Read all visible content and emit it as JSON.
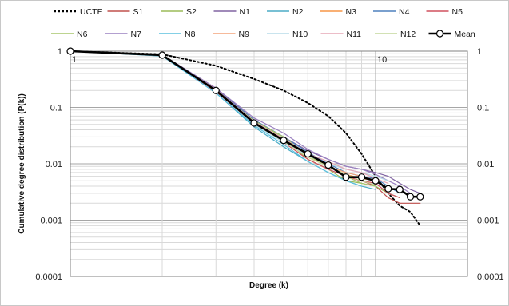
{
  "chart_data": {
    "type": "line",
    "xlabel": "Degree (k)",
    "ylabel": "Cumulative degree distribution (P(k))",
    "x_scale": "log",
    "y_scale": "log",
    "xlim": [
      1,
      20
    ],
    "ylim": [
      0.0001,
      1
    ],
    "x_tick_labels": [
      {
        "value": 1,
        "label": "1"
      },
      {
        "value": 10,
        "label": "10"
      }
    ],
    "y_tick_labels": [
      {
        "value": 1,
        "label": "1"
      },
      {
        "value": 0.1,
        "label": "0.1"
      },
      {
        "value": 0.01,
        "label": "0.01"
      },
      {
        "value": 0.001,
        "label": "0.001"
      },
      {
        "value": 0.0001,
        "label": "0.0001"
      }
    ],
    "grid": true,
    "legend_position": "top",
    "series": [
      {
        "name": "UCTE",
        "color": "#000000",
        "style": "dotted",
        "points": [
          [
            1,
            1
          ],
          [
            2,
            0.88
          ],
          [
            3,
            0.55
          ],
          [
            4,
            0.32
          ],
          [
            5,
            0.2
          ],
          [
            6,
            0.12
          ],
          [
            7,
            0.07
          ],
          [
            8,
            0.035
          ],
          [
            9,
            0.015
          ],
          [
            10,
            0.006
          ],
          [
            11,
            0.003
          ],
          [
            12,
            0.0018
          ],
          [
            13,
            0.0014
          ],
          [
            14,
            0.0008
          ]
        ]
      },
      {
        "name": "S1",
        "color": "#c0504d",
        "style": "solid",
        "points": [
          [
            1,
            1
          ],
          [
            2,
            0.83
          ],
          [
            3,
            0.2
          ],
          [
            4,
            0.05
          ],
          [
            5,
            0.025
          ],
          [
            6,
            0.015
          ],
          [
            7,
            0.009
          ],
          [
            8,
            0.006
          ],
          [
            9,
            0.005
          ],
          [
            10,
            0.004
          ],
          [
            11,
            0.0025
          ],
          [
            12,
            0.002
          ],
          [
            13,
            0.002
          ],
          [
            14,
            0.002
          ]
        ]
      },
      {
        "name": "S2",
        "color": "#9bbb59",
        "style": "solid",
        "points": [
          [
            1,
            1
          ],
          [
            2,
            0.85
          ],
          [
            3,
            0.2
          ],
          [
            4,
            0.06
          ],
          [
            5,
            0.028
          ],
          [
            6,
            0.012
          ],
          [
            7,
            0.008
          ],
          [
            8,
            0.005
          ],
          [
            9,
            0.0045
          ],
          [
            10,
            0.004
          ],
          [
            11,
            0.003
          ],
          [
            12,
            0.0025
          ]
        ]
      },
      {
        "name": "N1",
        "color": "#8064a2",
        "style": "solid",
        "points": [
          [
            1,
            1
          ],
          [
            2,
            0.86
          ],
          [
            3,
            0.22
          ],
          [
            4,
            0.06
          ],
          [
            5,
            0.03
          ],
          [
            6,
            0.017
          ],
          [
            7,
            0.012
          ],
          [
            8,
            0.009
          ],
          [
            9,
            0.008
          ],
          [
            10,
            0.007
          ],
          [
            11,
            0.006
          ],
          [
            12,
            0.0045
          ],
          [
            13,
            0.0035
          ],
          [
            14,
            0.003
          ]
        ]
      },
      {
        "name": "N2",
        "color": "#4bacc6",
        "style": "solid",
        "points": [
          [
            1,
            1
          ],
          [
            2,
            0.82
          ],
          [
            3,
            0.18
          ],
          [
            4,
            0.045
          ],
          [
            5,
            0.02
          ],
          [
            6,
            0.011
          ],
          [
            7,
            0.007
          ],
          [
            8,
            0.005
          ],
          [
            9,
            0.004
          ],
          [
            10,
            0.0035
          ]
        ]
      },
      {
        "name": "N3",
        "color": "#f79646",
        "style": "solid",
        "points": [
          [
            1,
            1
          ],
          [
            2,
            0.84
          ],
          [
            3,
            0.2
          ],
          [
            4,
            0.055
          ],
          [
            5,
            0.027
          ],
          [
            6,
            0.013
          ],
          [
            7,
            0.009
          ],
          [
            8,
            0.0065
          ],
          [
            9,
            0.0055
          ],
          [
            10,
            0.005
          ],
          [
            11,
            0.0035
          ]
        ]
      },
      {
        "name": "N4",
        "color": "#4f81bd",
        "style": "solid",
        "points": [
          [
            1,
            1
          ],
          [
            2,
            0.85
          ],
          [
            3,
            0.21
          ],
          [
            4,
            0.06
          ],
          [
            5,
            0.03
          ],
          [
            6,
            0.016
          ],
          [
            7,
            0.01
          ],
          [
            8,
            0.007
          ],
          [
            9,
            0.006
          ],
          [
            10,
            0.0055
          ],
          [
            11,
            0.004
          ],
          [
            12,
            0.003
          ]
        ]
      },
      {
        "name": "N5",
        "color": "#d0505f",
        "style": "solid",
        "points": [
          [
            1,
            1
          ],
          [
            2,
            0.83
          ],
          [
            3,
            0.19
          ],
          [
            4,
            0.052
          ],
          [
            5,
            0.024
          ],
          [
            6,
            0.012
          ],
          [
            7,
            0.008
          ],
          [
            8,
            0.006
          ],
          [
            9,
            0.005
          ],
          [
            10,
            0.0045
          ],
          [
            11,
            0.003
          ],
          [
            12,
            0.0025
          ]
        ]
      },
      {
        "name": "N6",
        "color": "#a7c66c",
        "style": "solid",
        "points": [
          [
            1,
            1
          ],
          [
            2,
            0.84
          ],
          [
            3,
            0.2
          ],
          [
            4,
            0.058
          ],
          [
            5,
            0.03
          ],
          [
            6,
            0.014
          ],
          [
            7,
            0.009
          ],
          [
            8,
            0.006
          ],
          [
            9,
            0.0045
          ],
          [
            10,
            0.004
          ]
        ]
      },
      {
        "name": "N7",
        "color": "#9a80c0",
        "style": "solid",
        "points": [
          [
            1,
            1
          ],
          [
            2,
            0.86
          ],
          [
            3,
            0.22
          ],
          [
            4,
            0.065
          ],
          [
            5,
            0.035
          ],
          [
            6,
            0.018
          ],
          [
            7,
            0.012
          ],
          [
            8,
            0.009
          ],
          [
            9,
            0.008
          ],
          [
            10,
            0.0065
          ],
          [
            11,
            0.005
          ],
          [
            12,
            0.004
          ],
          [
            13,
            0.003
          ]
        ]
      },
      {
        "name": "N8",
        "color": "#5bc0de",
        "style": "solid",
        "points": [
          [
            1,
            1
          ],
          [
            2,
            0.82
          ],
          [
            3,
            0.18
          ],
          [
            4,
            0.048
          ],
          [
            5,
            0.022
          ],
          [
            6,
            0.011
          ],
          [
            7,
            0.007
          ],
          [
            8,
            0.005
          ],
          [
            9,
            0.004
          ]
        ]
      },
      {
        "name": "N9",
        "color": "#f4a37a",
        "style": "solid",
        "points": [
          [
            1,
            1
          ],
          [
            2,
            0.84
          ],
          [
            3,
            0.2
          ],
          [
            4,
            0.055
          ],
          [
            5,
            0.026
          ],
          [
            6,
            0.013
          ],
          [
            7,
            0.009
          ],
          [
            8,
            0.007
          ],
          [
            9,
            0.006
          ],
          [
            10,
            0.005
          ]
        ]
      },
      {
        "name": "N10",
        "color": "#b7dbe8",
        "style": "solid",
        "points": [
          [
            1,
            1
          ],
          [
            2,
            0.85
          ],
          [
            3,
            0.2
          ],
          [
            4,
            0.05
          ],
          [
            5,
            0.024
          ],
          [
            6,
            0.014
          ],
          [
            7,
            0.01
          ],
          [
            8,
            0.008
          ],
          [
            9,
            0.007
          ],
          [
            10,
            0.006
          ],
          [
            11,
            0.005
          ]
        ]
      },
      {
        "name": "N11",
        "color": "#e6a7b5",
        "style": "solid",
        "points": [
          [
            1,
            1
          ],
          [
            2,
            0.84
          ],
          [
            3,
            0.21
          ],
          [
            4,
            0.056
          ],
          [
            5,
            0.028
          ],
          [
            6,
            0.015
          ],
          [
            7,
            0.011
          ],
          [
            8,
            0.008
          ],
          [
            9,
            0.007
          ],
          [
            10,
            0.0055
          ],
          [
            11,
            0.0045
          ]
        ]
      },
      {
        "name": "N12",
        "color": "#c4d79b",
        "style": "solid",
        "points": [
          [
            1,
            1
          ],
          [
            2,
            0.85
          ],
          [
            3,
            0.2
          ],
          [
            4,
            0.052
          ],
          [
            5,
            0.025
          ],
          [
            6,
            0.013
          ],
          [
            7,
            0.009
          ],
          [
            8,
            0.0065
          ],
          [
            9,
            0.005
          ],
          [
            10,
            0.0042
          ]
        ]
      },
      {
        "name": "Mean",
        "color": "#000000",
        "style": "solid-markers",
        "points": [
          [
            1,
            1
          ],
          [
            2,
            0.85
          ],
          [
            3,
            0.2
          ],
          [
            4,
            0.053
          ],
          [
            5,
            0.026
          ],
          [
            6,
            0.015
          ],
          [
            7,
            0.0095
          ],
          [
            8,
            0.0058
          ],
          [
            9,
            0.0058
          ],
          [
            10,
            0.005
          ],
          [
            11,
            0.0036
          ],
          [
            12,
            0.0035
          ],
          [
            13,
            0.0026
          ],
          [
            14,
            0.0026
          ]
        ]
      }
    ]
  }
}
